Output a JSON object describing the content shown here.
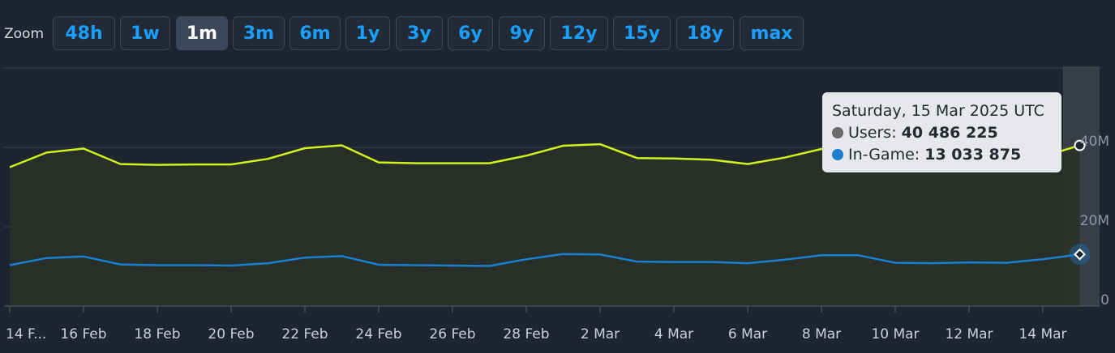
{
  "zoom": {
    "label": "Zoom",
    "buttons": [
      "48h",
      "1w",
      "1m",
      "3m",
      "6m",
      "1y",
      "3y",
      "6y",
      "9y",
      "12y",
      "15y",
      "18y",
      "max"
    ],
    "active": "1m"
  },
  "tooltip": {
    "date": "Saturday, 15 Mar 2025 UTC",
    "series": [
      {
        "name": "Users",
        "value": "40 486 225",
        "color": "#6b6b6b"
      },
      {
        "name": "In-Game",
        "value": "13 033 875",
        "color": "#1a7fd0"
      }
    ]
  },
  "chart_data": {
    "type": "line",
    "x": [
      "14 Feb",
      "15 Feb",
      "16 Feb",
      "17 Feb",
      "18 Feb",
      "19 Feb",
      "20 Feb",
      "21 Feb",
      "22 Feb",
      "23 Feb",
      "24 Feb",
      "25 Feb",
      "26 Feb",
      "27 Feb",
      "28 Feb",
      "1 Mar",
      "2 Mar",
      "3 Mar",
      "4 Mar",
      "5 Mar",
      "6 Mar",
      "7 Mar",
      "8 Mar",
      "9 Mar",
      "10 Mar",
      "11 Mar",
      "12 Mar",
      "13 Mar",
      "14 Mar",
      "15 Mar"
    ],
    "x_tick_labels": [
      "14 F...",
      "16 Feb",
      "18 Feb",
      "20 Feb",
      "22 Feb",
      "24 Feb",
      "26 Feb",
      "28 Feb",
      "2 Mar",
      "4 Mar",
      "6 Mar",
      "8 Mar",
      "10 Mar",
      "12 Mar",
      "14 Mar"
    ],
    "y_tick_labels": [
      "0",
      "20M",
      "40M"
    ],
    "ylim": [
      0,
      60000000
    ],
    "series": [
      {
        "name": "Users",
        "color": "#d2f21e",
        "values": [
          35000000,
          38700000,
          39700000,
          35800000,
          35600000,
          35700000,
          35700000,
          37100000,
          39800000,
          40500000,
          36200000,
          36000000,
          36000000,
          36000000,
          37900000,
          40400000,
          40800000,
          37300000,
          37200000,
          36900000,
          35800000,
          37400000,
          39600000,
          39500000,
          36700000,
          36300000,
          36100000,
          36000000,
          37700000,
          40486225
        ]
      },
      {
        "name": "In-Game",
        "color": "#1a7fd0",
        "values": [
          10300000,
          12100000,
          12500000,
          10500000,
          10300000,
          10300000,
          10200000,
          10800000,
          12200000,
          12600000,
          10400000,
          10300000,
          10200000,
          10100000,
          11800000,
          13100000,
          13000000,
          11200000,
          11100000,
          11100000,
          10800000,
          11700000,
          12800000,
          12800000,
          10900000,
          10800000,
          11000000,
          10900000,
          11800000,
          13033875
        ]
      }
    ]
  }
}
